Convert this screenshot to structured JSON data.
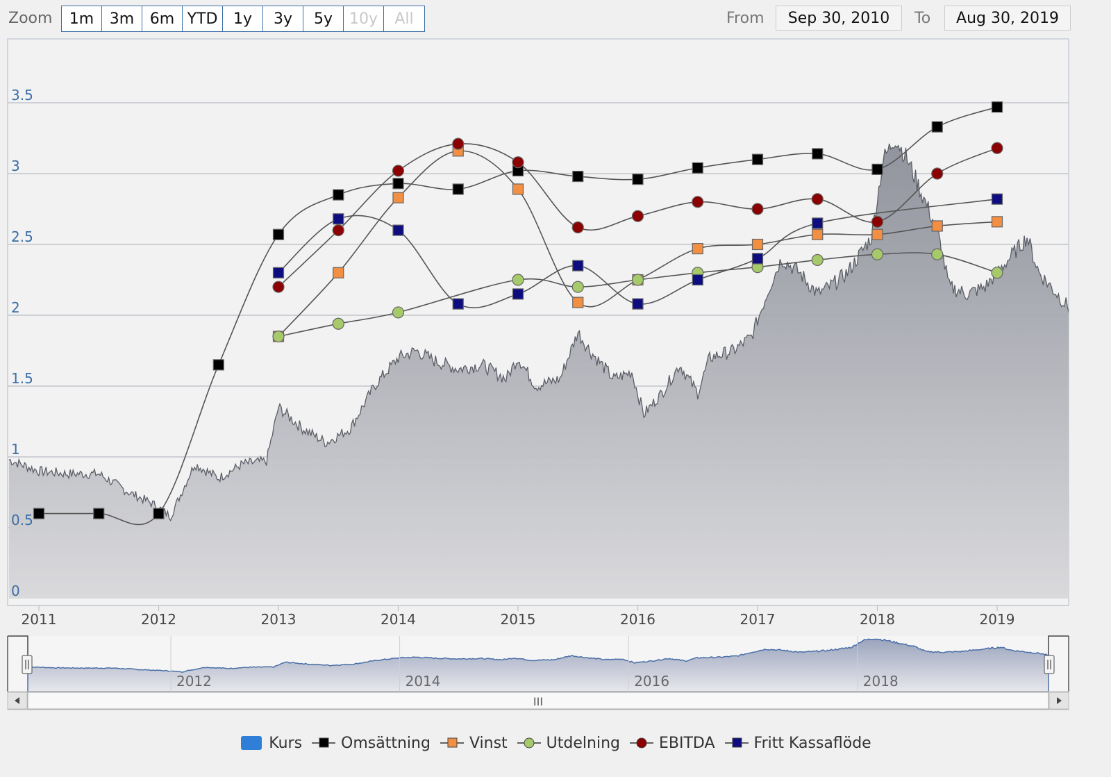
{
  "toolbar": {
    "zoom_label": "Zoom",
    "zoom_buttons": [
      {
        "label": "1m",
        "enabled": true
      },
      {
        "label": "3m",
        "enabled": true
      },
      {
        "label": "6m",
        "enabled": true
      },
      {
        "label": "YTD",
        "enabled": true
      },
      {
        "label": "1y",
        "enabled": true
      },
      {
        "label": "3y",
        "enabled": true
      },
      {
        "label": "5y",
        "enabled": true
      },
      {
        "label": "10y",
        "enabled": false
      },
      {
        "label": "All",
        "enabled": false
      }
    ],
    "from_label": "From",
    "from_value": "Sep 30, 2010",
    "to_label": "To",
    "to_value": "Aug 30, 2019"
  },
  "colors": {
    "kurs": "#2f7ed8",
    "omsattning": "#000000",
    "vinst": "#f28f43",
    "utdelning": "#a6c96a",
    "ebitda": "#8b0000",
    "fritt_kassaflode": "#0d0d80",
    "area_top": "#9aa0b0",
    "axis_label": "#3a6ea5"
  },
  "chart_data": {
    "type": "line",
    "x_axis_labels": [
      "2011",
      "2012",
      "2013",
      "2014",
      "2015",
      "2016",
      "2017",
      "2018",
      "2019"
    ],
    "x_range": [
      2010.75,
      2019.67
    ],
    "y_axis_labels": [
      "0",
      "0.5",
      "1",
      "1.5",
      "2",
      "2.5",
      "3",
      "3.5"
    ],
    "ylim": [
      0,
      4
    ],
    "grid": true,
    "legend_position": "bottom-center",
    "series": [
      {
        "name": "Kurs",
        "kind": "area",
        "color_key": "kurs",
        "x": [
          2010.75,
          2011.0,
          2011.25,
          2011.5,
          2011.75,
          2011.95,
          2012.1,
          2012.3,
          2012.5,
          2012.7,
          2012.9,
          2013.0,
          2013.2,
          2013.4,
          2013.6,
          2013.8,
          2014.0,
          2014.15,
          2014.3,
          2014.5,
          2014.7,
          2014.9,
          2015.0,
          2015.15,
          2015.35,
          2015.5,
          2015.6,
          2015.8,
          2015.95,
          2016.05,
          2016.2,
          2016.35,
          2016.5,
          2016.6,
          2016.8,
          2016.95,
          2017.1,
          2017.2,
          2017.35,
          2017.5,
          2017.6,
          2017.75,
          2017.95,
          2018.05,
          2018.15,
          2018.25,
          2018.4,
          2018.5,
          2018.6,
          2018.75,
          2018.9,
          2019.0,
          2019.1,
          2019.25,
          2019.35,
          2019.5,
          2019.6,
          2019.67
        ],
        "values": [
          0.98,
          0.9,
          0.88,
          0.88,
          0.75,
          0.67,
          0.58,
          0.95,
          0.85,
          0.95,
          0.97,
          1.35,
          1.2,
          1.1,
          1.2,
          1.5,
          1.7,
          1.75,
          1.68,
          1.62,
          1.65,
          1.55,
          1.7,
          1.5,
          1.55,
          1.88,
          1.75,
          1.55,
          1.6,
          1.3,
          1.45,
          1.65,
          1.45,
          1.7,
          1.75,
          1.85,
          2.2,
          2.4,
          2.3,
          2.15,
          2.2,
          2.3,
          2.55,
          3.1,
          3.25,
          3.1,
          2.8,
          2.6,
          2.2,
          2.15,
          2.2,
          2.3,
          2.4,
          2.55,
          2.3,
          2.15,
          2.05,
          1.9
        ]
      },
      {
        "name": "Omsättning",
        "kind": "line",
        "color_key": "omsattning",
        "marker": "square",
        "x": [
          2011.0,
          2011.5,
          2012.0,
          2012.5,
          2013.0,
          2013.5,
          2014.0,
          2014.5,
          2015.0,
          2015.5,
          2016.0,
          2016.5,
          2017.0,
          2017.5,
          2018.0,
          2018.5,
          2019.0
        ],
        "values": [
          0.6,
          0.6,
          0.6,
          1.65,
          2.57,
          2.85,
          2.93,
          2.89,
          3.02,
          2.98,
          2.96,
          3.04,
          3.1,
          3.14,
          3.03,
          3.33,
          3.47
        ]
      },
      {
        "name": "Vinst",
        "kind": "line",
        "color_key": "vinst",
        "marker": "square",
        "x": [
          2013.0,
          2013.5,
          2014.0,
          2014.5,
          2015.0,
          2015.5,
          2016.0,
          2016.5,
          2017.0,
          2017.5,
          2018.0,
          2018.5,
          2019.0
        ],
        "values": [
          1.85,
          2.3,
          2.83,
          3.16,
          2.89,
          2.09,
          2.25,
          2.47,
          2.5,
          2.57,
          2.57,
          2.63,
          2.66
        ]
      },
      {
        "name": "Utdelning",
        "kind": "line",
        "color_key": "utdelning",
        "marker": "circle",
        "x": [
          2013.0,
          2013.5,
          2014.0,
          2015.0,
          2015.5,
          2016.0,
          2016.5,
          2017.0,
          2017.5,
          2018.0,
          2018.5,
          2019.0
        ],
        "values": [
          1.85,
          1.94,
          2.02,
          2.25,
          2.2,
          2.25,
          2.3,
          2.34,
          2.39,
          2.43,
          2.43,
          2.3
        ]
      },
      {
        "name": "EBITDA",
        "kind": "line",
        "color_key": "ebitda",
        "marker": "circle",
        "x": [
          2013.0,
          2013.5,
          2014.0,
          2014.5,
          2015.0,
          2015.5,
          2016.0,
          2016.5,
          2017.0,
          2017.5,
          2018.0,
          2018.5,
          2019.0
        ],
        "values": [
          2.2,
          2.6,
          3.02,
          3.21,
          3.08,
          2.62,
          2.7,
          2.8,
          2.75,
          2.82,
          2.66,
          3.0,
          3.18
        ]
      },
      {
        "name": "Fritt Kassaflöde",
        "kind": "line",
        "color_key": "fritt_kassaflode",
        "marker": "square",
        "x": [
          2013.0,
          2013.5,
          2014.0,
          2014.5,
          2015.0,
          2015.5,
          2016.0,
          2016.5,
          2017.0,
          2017.5,
          2019.0
        ],
        "values": [
          2.3,
          2.68,
          2.6,
          2.08,
          2.15,
          2.35,
          2.08,
          2.25,
          2.4,
          2.65,
          2.82
        ]
      }
    ],
    "navigator": {
      "labels": [
        "2012",
        "2014",
        "2016",
        "2018"
      ],
      "scrollbar_grip": "III"
    }
  }
}
